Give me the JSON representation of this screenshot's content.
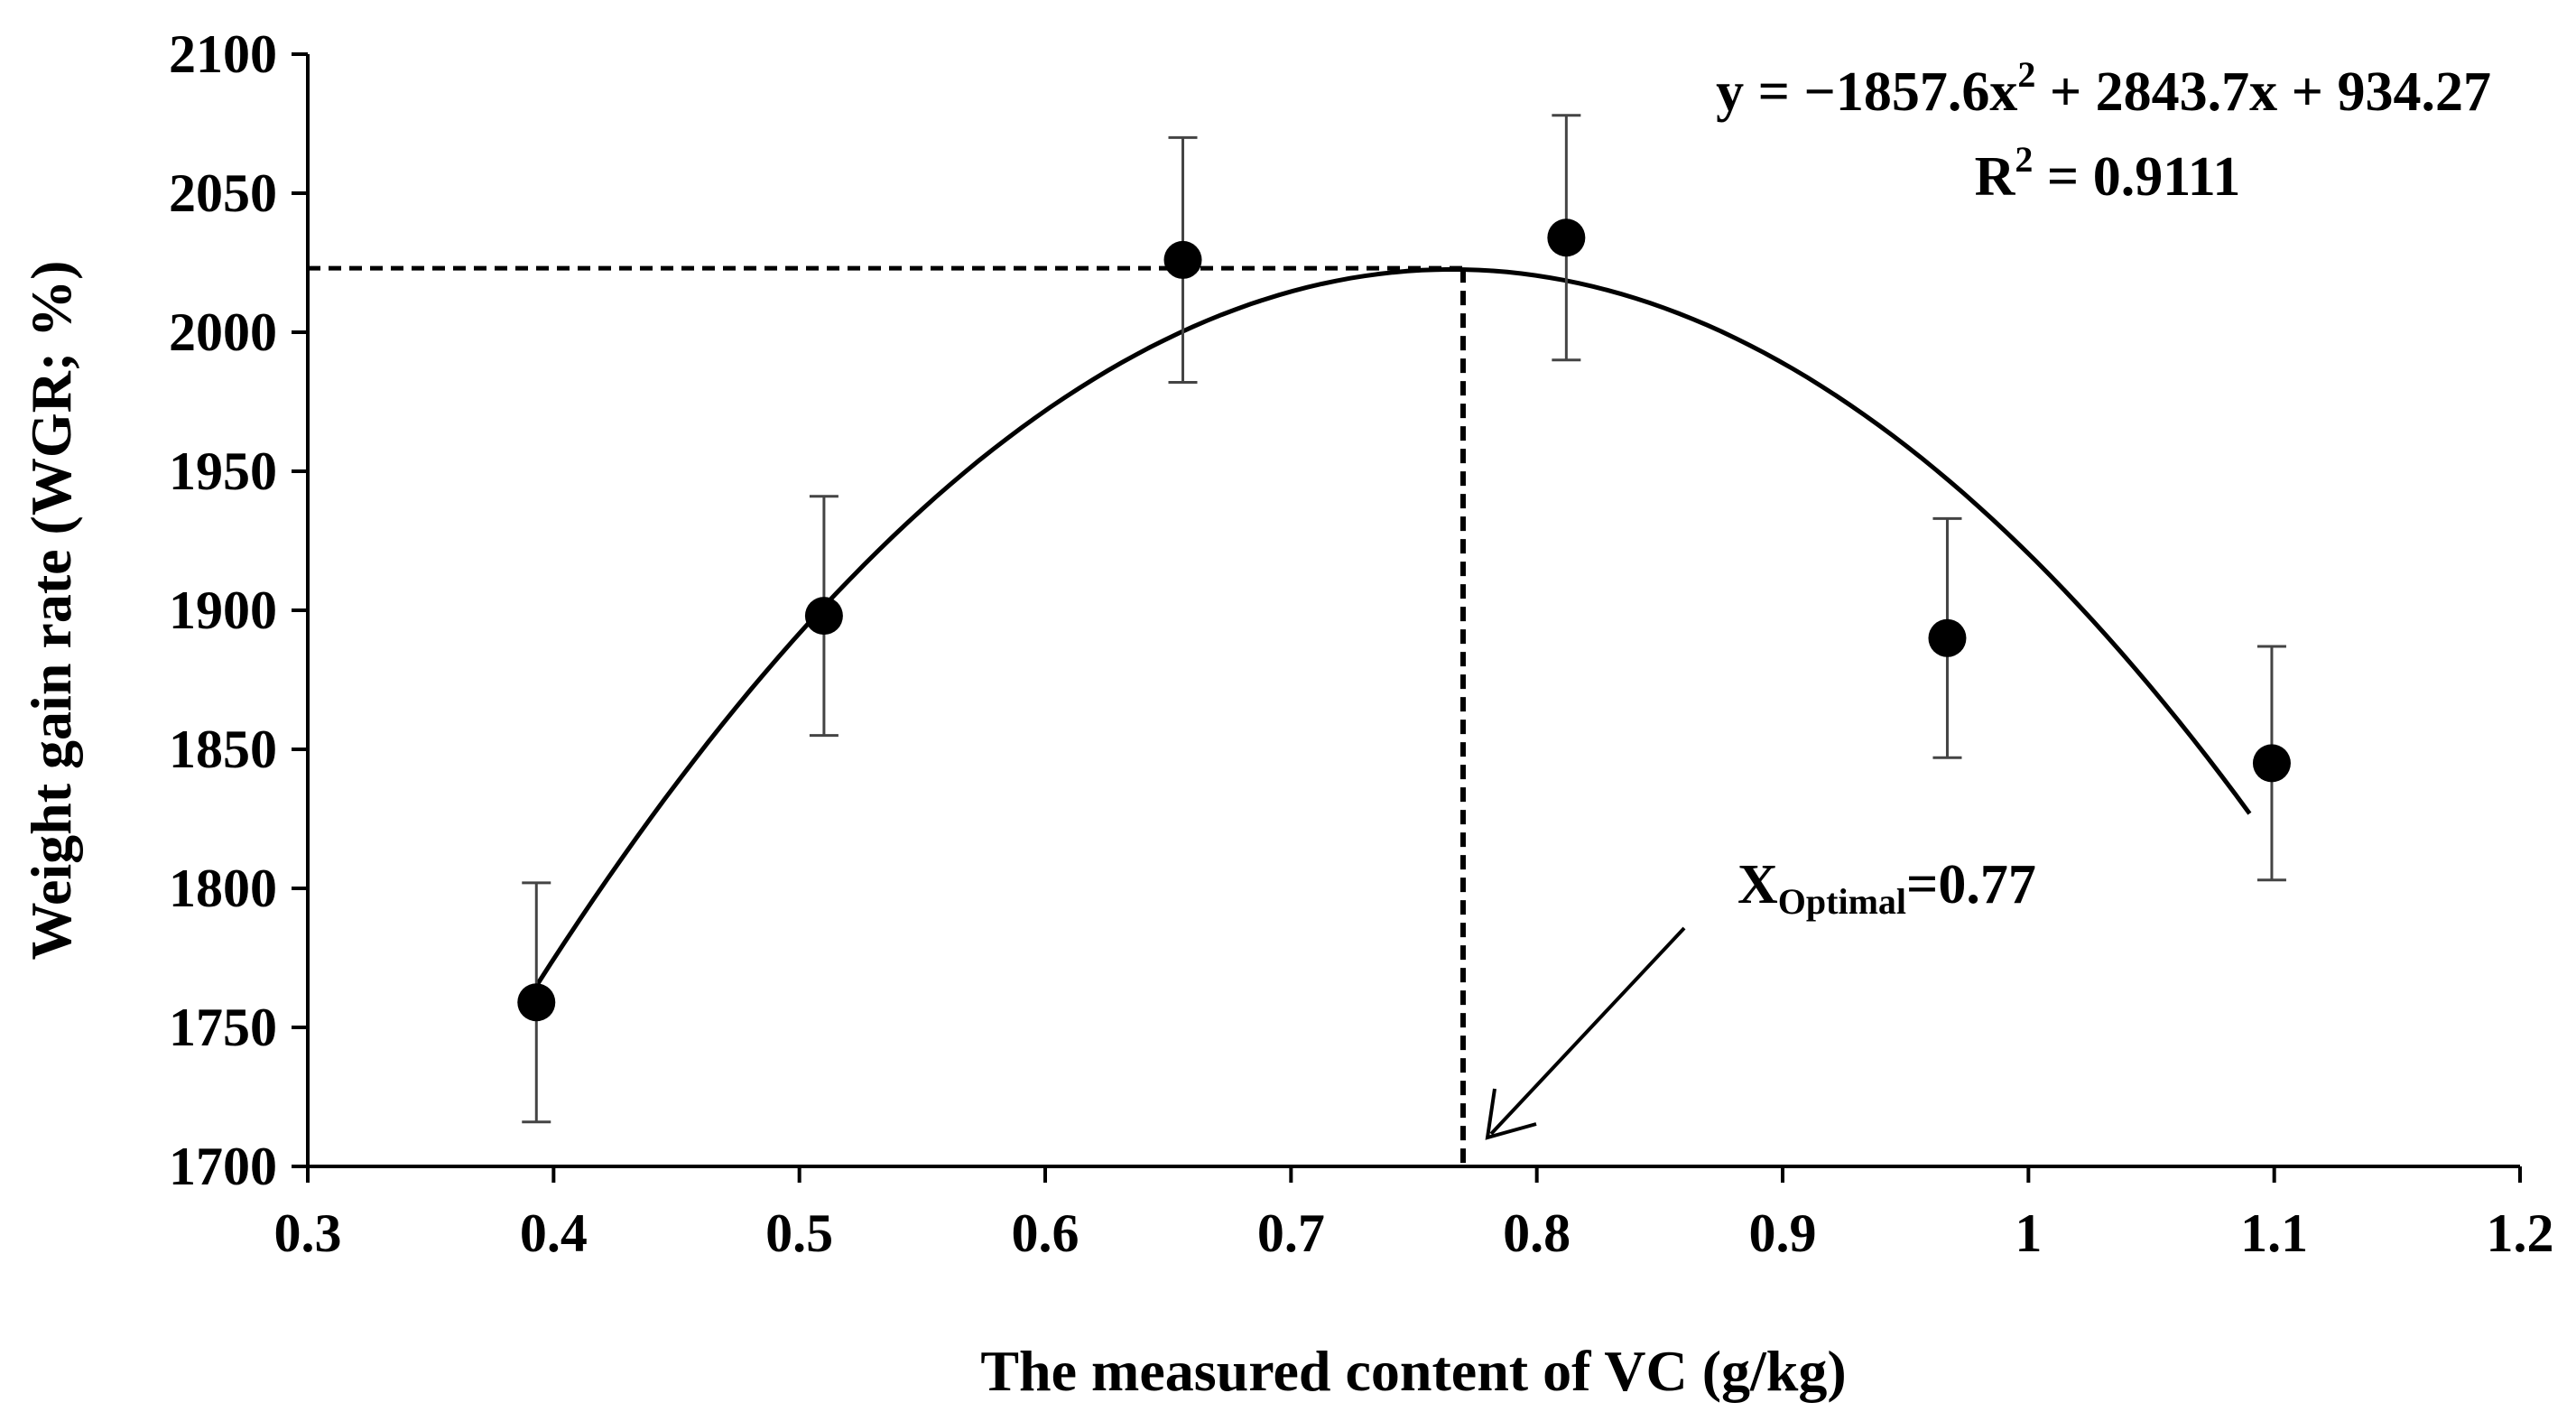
{
  "chart_data": {
    "type": "scatter",
    "title": "",
    "xlabel": "The measured content of VC (g/kg)",
    "ylabel": "Weight gain rate (WGR; %)",
    "xlim": [
      0.3,
      1.2
    ],
    "ylim": [
      1700,
      2100
    ],
    "x_ticks": [
      0.3,
      0.4,
      0.5,
      0.6,
      0.7,
      0.8,
      0.9,
      1,
      1.1,
      1.2
    ],
    "x_tick_labels": [
      "0.3",
      "0.4",
      "0.5",
      "0.6",
      "0.7",
      "0.8",
      "0.9",
      "1",
      "1.1",
      "1.2"
    ],
    "y_ticks": [
      1700,
      1750,
      1800,
      1850,
      1900,
      1950,
      2000,
      2050,
      2100
    ],
    "y_tick_labels": [
      "1700",
      "1750",
      "1800",
      "1850",
      "1900",
      "1950",
      "2000",
      "2050",
      "2100"
    ],
    "series": [
      {
        "name": "WGR",
        "x": [
          0.393,
          0.51,
          0.656,
          0.812,
          0.967,
          1.099
        ],
        "y": [
          1759,
          1898,
          2026,
          2034,
          1890,
          1845
        ],
        "error": [
          43,
          43,
          44,
          44,
          43,
          42
        ]
      }
    ],
    "fit": {
      "type": "quadratic",
      "a": -1857.6,
      "b": 2843.7,
      "c": 934.27,
      "x_range": [
        0.393,
        1.09
      ],
      "equation_prefix": "y = −1857.6x",
      "equation_exp": "2",
      "equation_suffix": " + 2843.7x + 934.27",
      "r2_prefix": "R",
      "r2_exp": "2",
      "r2_suffix": " = 0.9111"
    },
    "optimum": {
      "x": 0.77,
      "y": 2023,
      "label_main": "X",
      "label_sub": "Optimal",
      "label_value": "=0.77"
    }
  }
}
